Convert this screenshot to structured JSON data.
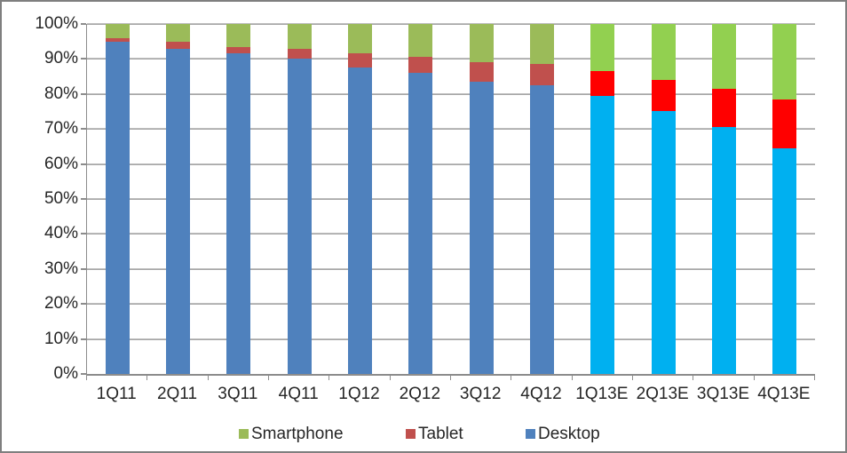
{
  "chart_data": {
    "type": "bar",
    "variant": "stacked-100",
    "title": "",
    "xlabel": "",
    "ylabel": "",
    "grid": true,
    "legend_position": "bottom",
    "categories": [
      "1Q11",
      "2Q11",
      "3Q11",
      "4Q11",
      "1Q12",
      "2Q12",
      "3Q12",
      "4Q12",
      "1Q13E",
      "2Q13E",
      "3Q13E",
      "4Q13E"
    ],
    "estimate_flags": [
      false,
      false,
      false,
      false,
      false,
      false,
      false,
      false,
      true,
      true,
      true,
      true
    ],
    "series": [
      {
        "name": "Desktop",
        "color": "#4f81bd",
        "estimate_color": "#00b0f0",
        "values": [
          95,
          93,
          91.5,
          90,
          87.5,
          86,
          83.5,
          82.5,
          79.5,
          75,
          70.5,
          64.5
        ]
      },
      {
        "name": "Tablet",
        "color": "#c0504d",
        "estimate_color": "#ff0000",
        "values": [
          1,
          2,
          2,
          3,
          4,
          4.5,
          5.5,
          6,
          7,
          9,
          11,
          14
        ]
      },
      {
        "name": "Smartphone",
        "color": "#9bbb59",
        "estimate_color": "#92d050",
        "values": [
          4,
          5,
          6.5,
          7,
          8.5,
          9.5,
          11,
          11.5,
          13.5,
          16,
          18.5,
          21.5
        ]
      }
    ],
    "y_axis": {
      "min": 0,
      "max": 100,
      "step": 10,
      "tick_labels": [
        "0%",
        "10%",
        "20%",
        "30%",
        "40%",
        "50%",
        "60%",
        "70%",
        "80%",
        "90%",
        "100%"
      ]
    },
    "legend": [
      {
        "label": "Smartphone",
        "color": "#9bbb59"
      },
      {
        "label": "Tablet",
        "color": "#c0504d"
      },
      {
        "label": "Desktop",
        "color": "#4f81bd"
      }
    ]
  },
  "colors": {
    "background": "#ffffff",
    "frame_border": "#7f7f7f",
    "gridline": "#a6a6a6",
    "axis": "#8c8c8c",
    "text": "#262626"
  }
}
